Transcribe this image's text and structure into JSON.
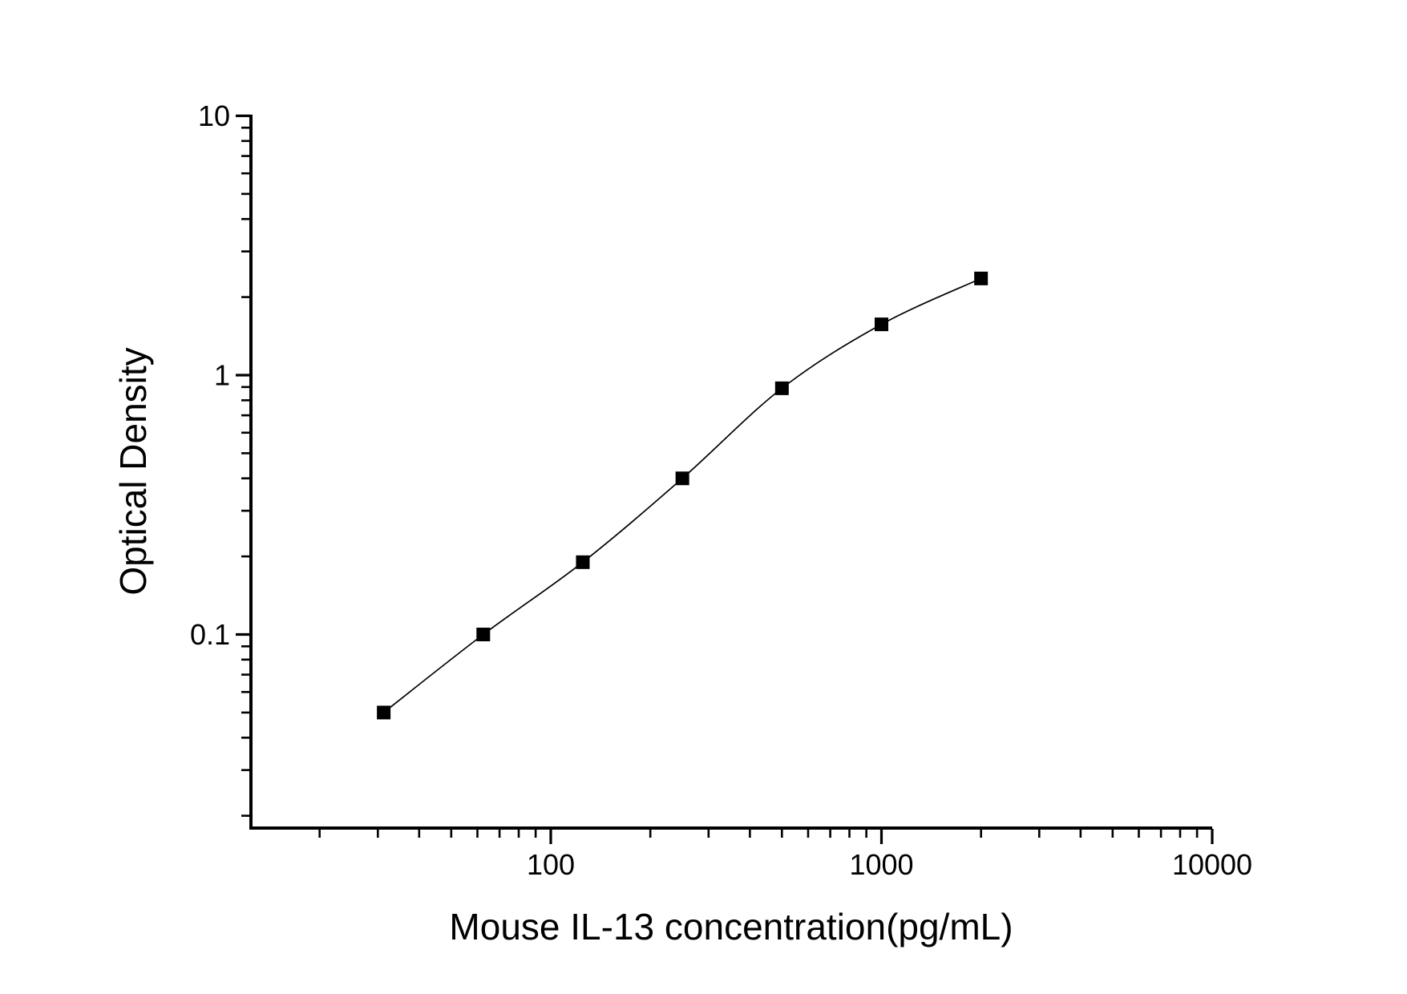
{
  "figure": {
    "background": "#ffffff",
    "foreground": "#000000"
  },
  "chart_data": {
    "type": "line",
    "subtype": "elisa-standard-curve-scatter-with-smooth-fit",
    "title": "",
    "xlabel": "Mouse IL-13 concentration(pg/mL)",
    "ylabel": "Optical Density",
    "xscale": "log",
    "yscale": "log",
    "xlim": [
      12.4,
      10000
    ],
    "ylim": [
      0.018,
      10
    ],
    "x": [
      31.25,
      62.5,
      125,
      250,
      500,
      1000,
      2000
    ],
    "y": [
      0.05,
      0.1,
      0.19,
      0.4,
      0.89,
      1.57,
      2.36
    ],
    "x_major_ticks": {
      "values": [
        100,
        1000,
        10000
      ],
      "labels": [
        "100",
        "1000",
        "10000"
      ]
    },
    "y_major_ticks": {
      "values": [
        10,
        1,
        0.1
      ],
      "labels": [
        "10",
        "1",
        "0.1"
      ]
    },
    "x_minor_ticks": [
      20,
      30,
      40,
      50,
      60,
      70,
      80,
      90,
      200,
      300,
      400,
      500,
      600,
      700,
      800,
      900,
      2000,
      3000,
      4000,
      5000,
      6000,
      7000,
      8000,
      9000
    ],
    "y_minor_ticks": [
      9,
      8,
      7,
      6,
      5,
      4,
      3,
      2,
      0.9,
      0.8,
      0.7,
      0.6,
      0.5,
      0.4,
      0.3,
      0.2,
      0.09,
      0.08,
      0.07,
      0.06,
      0.05,
      0.04,
      0.03,
      0.02
    ],
    "marker": "filled-square",
    "marker_color": "#000000",
    "line_color": "#000000",
    "axis_color": "#000000",
    "grid": false,
    "legend": false
  }
}
